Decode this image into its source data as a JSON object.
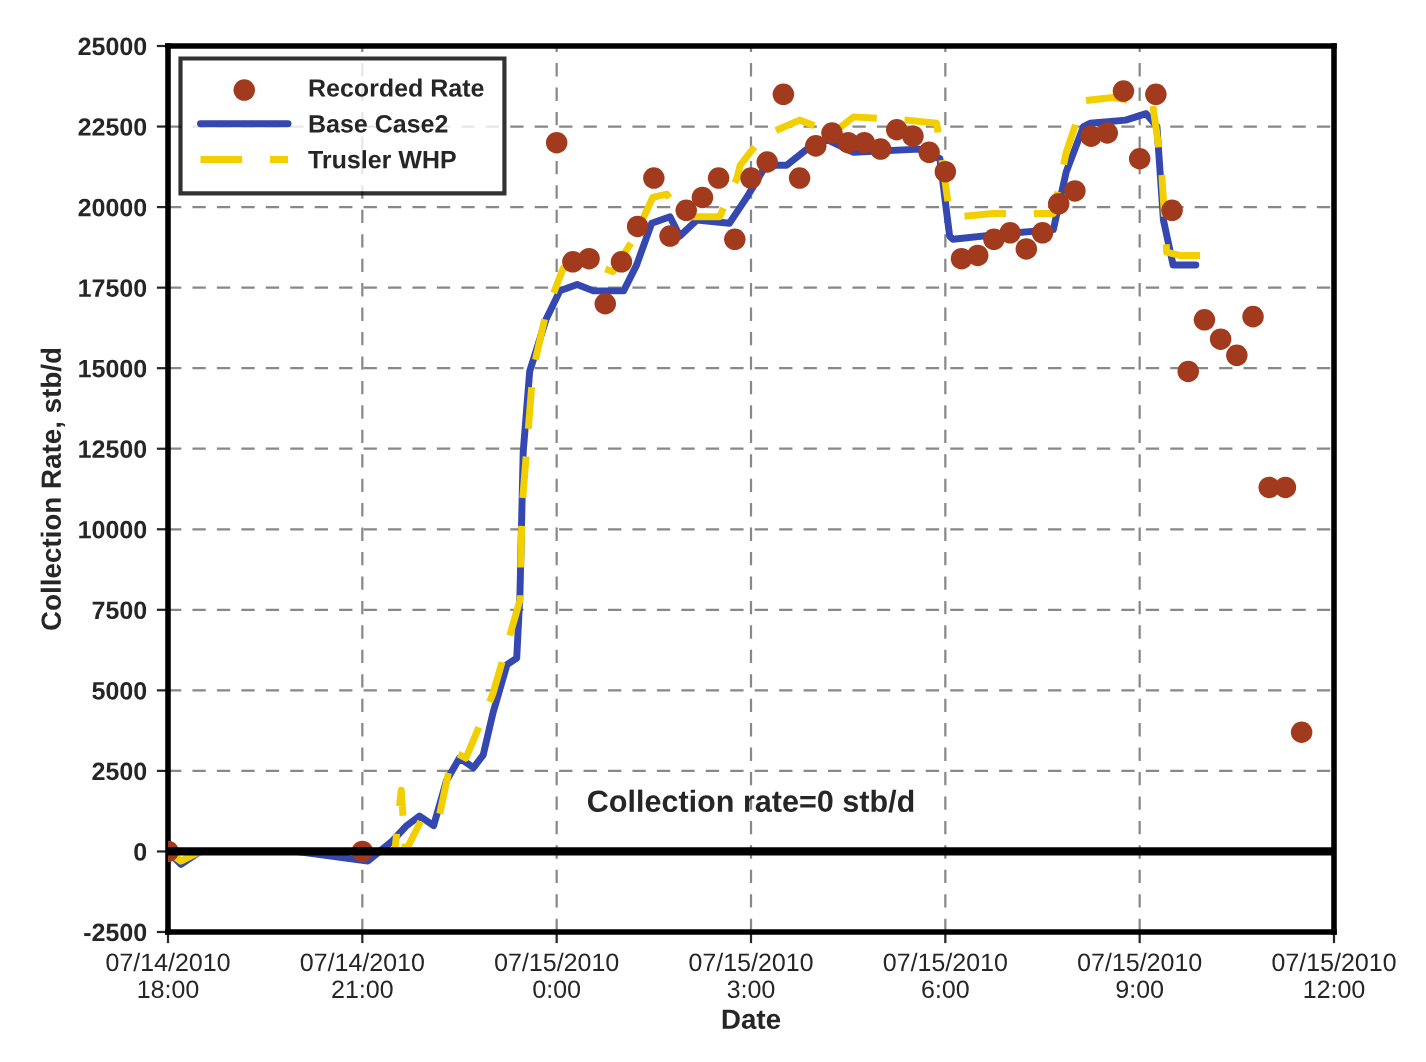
{
  "chart_data": {
    "type": "line",
    "xlabel": "Date",
    "ylabel": "Collection Rate, stb/d",
    "xlim": [
      "2010-07-14T18:00",
      "2010-07-15T12:00"
    ],
    "xticks": [
      {
        "value": "2010-07-14T18:00",
        "label": "07/14/2010\n18:00"
      },
      {
        "value": "2010-07-14T21:00",
        "label": "07/14/2010\n21:00"
      },
      {
        "value": "2010-07-15T00:00",
        "label": "07/15/2010\n0:00"
      },
      {
        "value": "2010-07-15T03:00",
        "label": "07/15/2010\n3:00"
      },
      {
        "value": "2010-07-15T06:00",
        "label": "07/15/2010\n6:00"
      },
      {
        "value": "2010-07-15T09:00",
        "label": "07/15/2010\n9:00"
      },
      {
        "value": "2010-07-15T12:00",
        "label": "07/15/2010\n12:00"
      }
    ],
    "ylim": [
      -2500,
      25000
    ],
    "yticks": [
      -2500,
      0,
      2500,
      5000,
      7500,
      10000,
      12500,
      15000,
      17500,
      20000,
      22500,
      25000
    ],
    "grid": true,
    "legend": "top left",
    "ref_lines": [
      {
        "axis": "y",
        "value": 0,
        "color": "#000000",
        "label": "Collection rate=0 stb/d"
      }
    ],
    "series": [
      {
        "name": "Recorded Rate",
        "type": "scatter",
        "marker": "circle",
        "color": "#a23a1e",
        "x": [
          "2010-07-14T18:00",
          "2010-07-14T21:00",
          "2010-07-15T00:00",
          "2010-07-15T00:15",
          "2010-07-15T00:30",
          "2010-07-15T00:45",
          "2010-07-15T01:00",
          "2010-07-15T01:15",
          "2010-07-15T01:30",
          "2010-07-15T01:45",
          "2010-07-15T02:00",
          "2010-07-15T02:15",
          "2010-07-15T02:30",
          "2010-07-15T02:45",
          "2010-07-15T03:00",
          "2010-07-15T03:15",
          "2010-07-15T03:30",
          "2010-07-15T03:45",
          "2010-07-15T04:00",
          "2010-07-15T04:15",
          "2010-07-15T04:30",
          "2010-07-15T04:45",
          "2010-07-15T05:00",
          "2010-07-15T05:15",
          "2010-07-15T05:30",
          "2010-07-15T05:45",
          "2010-07-15T06:00",
          "2010-07-15T06:15",
          "2010-07-15T06:30",
          "2010-07-15T06:45",
          "2010-07-15T07:00",
          "2010-07-15T07:15",
          "2010-07-15T07:30",
          "2010-07-15T07:45",
          "2010-07-15T08:00",
          "2010-07-15T08:15",
          "2010-07-15T08:30",
          "2010-07-15T08:45",
          "2010-07-15T09:00",
          "2010-07-15T09:15",
          "2010-07-15T09:30",
          "2010-07-15T09:45",
          "2010-07-15T10:00",
          "2010-07-15T10:15",
          "2010-07-15T10:30",
          "2010-07-15T10:45",
          "2010-07-15T11:00",
          "2010-07-15T11:15",
          "2010-07-15T11:30"
        ],
        "values": [
          0,
          0,
          22000,
          18300,
          18400,
          17000,
          18300,
          19400,
          20900,
          19100,
          19900,
          20300,
          20900,
          19000,
          20900,
          21400,
          23500,
          20900,
          21900,
          22300,
          22000,
          22000,
          21800,
          22400,
          22200,
          21700,
          21100,
          18400,
          18500,
          19000,
          19200,
          18700,
          19200,
          20100,
          20500,
          22200,
          22300,
          23600,
          21500,
          23500,
          19900,
          14900,
          16500,
          15900,
          15400,
          16600,
          11300,
          11300,
          3700
        ]
      },
      {
        "name": "Base Case2",
        "line_style": "solid",
        "color": "#3548b0",
        "x": [
          "2010-07-14T18:00",
          "2010-07-14T18:12",
          "2010-07-14T18:30",
          "2010-07-14T20:00",
          "2010-07-14T21:05",
          "2010-07-14T21:16",
          "2010-07-14T21:27",
          "2010-07-14T21:41",
          "2010-07-14T21:53",
          "2010-07-14T22:06",
          "2010-07-14T22:18",
          "2010-07-14T22:30",
          "2010-07-14T22:43",
          "2010-07-14T22:52",
          "2010-07-14T23:01",
          "2010-07-14T23:14",
          "2010-07-14T23:23",
          "2010-07-14T23:26",
          "2010-07-14T23:29",
          "2010-07-14T23:35",
          "2010-07-14T23:50",
          "2010-07-15T00:03",
          "2010-07-15T00:19",
          "2010-07-15T00:34",
          "2010-07-15T01:02",
          "2010-07-15T01:14",
          "2010-07-15T01:28",
          "2010-07-15T01:45",
          "2010-07-15T01:54",
          "2010-07-15T02:10",
          "2010-07-15T02:40",
          "2010-07-15T02:50",
          "2010-07-15T02:56",
          "2010-07-15T03:14",
          "2010-07-15T03:33",
          "2010-07-15T03:52",
          "2010-07-15T04:10",
          "2010-07-15T04:35",
          "2010-07-15T05:36",
          "2010-07-15T05:55",
          "2010-07-15T06:04",
          "2010-07-15T06:07",
          "2010-07-15T07:03",
          "2010-07-15T07:40",
          "2010-07-15T07:52",
          "2010-07-15T08:08",
          "2010-07-15T08:14",
          "2010-07-15T08:47",
          "2010-07-15T09:06",
          "2010-07-15T09:16",
          "2010-07-15T09:22",
          "2010-07-15T09:31",
          "2010-07-15T09:52"
        ],
        "values": [
          0,
          -400,
          0,
          0,
          -300,
          0,
          300,
          800,
          1100,
          800,
          2200,
          2900,
          2600,
          3000,
          4300,
          5800,
          6000,
          8000,
          12400,
          14900,
          16500,
          17400,
          17600,
          17400,
          17400,
          18200,
          19500,
          19700,
          19100,
          19600,
          19500,
          20000,
          20300,
          21300,
          21300,
          21800,
          22100,
          21700,
          21800,
          21500,
          19100,
          19000,
          19200,
          19300,
          21100,
          22500,
          22600,
          22700,
          22900,
          22500,
          19600,
          18200,
          18200
        ]
      },
      {
        "name": "Trusler WHP",
        "line_style": "dashed",
        "color": "#f2cf00",
        "x": [
          "2010-07-14T18:00",
          "2010-07-14T18:12",
          "2010-07-14T18:30",
          "2010-07-14T21:00",
          "2010-07-14T21:30",
          "2010-07-14T21:36",
          "2010-07-14T21:40",
          "2010-07-14T21:55",
          "2010-07-14T22:10",
          "2010-07-14T22:24",
          "2010-07-14T22:36",
          "2010-07-14T23:01",
          "2010-07-14T23:26",
          "2010-07-14T23:28",
          "2010-07-14T23:38",
          "2010-07-14T23:50",
          "2010-07-15T00:06",
          "2010-07-15T00:34",
          "2010-07-15T00:52",
          "2010-07-15T01:11",
          "2010-07-15T01:29",
          "2010-07-15T01:42",
          "2010-07-15T01:57",
          "2010-07-15T02:31",
          "2010-07-15T02:47",
          "2010-07-15T02:50",
          "2010-07-15T03:11",
          "2010-07-15T03:45",
          "2010-07-15T04:16",
          "2010-07-15T04:35",
          "2010-07-15T05:24",
          "2010-07-15T05:52",
          "2010-07-15T06:04",
          "2010-07-15T06:13",
          "2010-07-15T06:44",
          "2010-07-15T07:40",
          "2010-07-15T07:52",
          "2010-07-15T08:08",
          "2010-07-15T08:35",
          "2010-07-15T09:12",
          "2010-07-15T09:20",
          "2010-07-15T09:25",
          "2010-07-15T09:37",
          "2010-07-15T09:59"
        ],
        "values": [
          0,
          -300,
          0,
          0,
          0,
          1900,
          0,
          1000,
          900,
          3100,
          2900,
          4900,
          7800,
          10700,
          14900,
          16700,
          18100,
          18200,
          18000,
          19000,
          20300,
          20400,
          19700,
          19700,
          20900,
          21300,
          22200,
          22700,
          22300,
          22800,
          22700,
          22600,
          19800,
          19700,
          19800,
          19800,
          21700,
          23300,
          23400,
          23200,
          21300,
          18600,
          18500,
          18500
        ]
      }
    ]
  }
}
